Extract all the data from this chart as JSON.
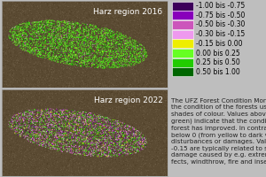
{
  "title_top": "Harz region 2016",
  "title_bottom": "Harz region 2022",
  "legend_labels": [
    "-1.00 bis -0.75",
    "-0.75 bis -0.50",
    "-0.50 bis -0.30",
    "-0.30 bis -0.15",
    "-0.15 bis 0.00",
    "0.00 bis 0.25",
    "0.25 bis 0.50",
    "0.50 bis 1.00"
  ],
  "legend_colors": [
    "#3d005a",
    "#8800bb",
    "#cc55bb",
    "#ee99ee",
    "#eeee00",
    "#66ff22",
    "#22cc00",
    "#006600"
  ],
  "bg_color": "#bebebe",
  "map_bg": "#5a4a32",
  "panel_bg": "#8a7a62",
  "description": "The UFZ Forest Condition Monitor visualises\nthe condition of the forests using different\nshades of colour. Values above 0 (shades of\ngreen) indicate that the condition of the\nforest has improved. In contrast, values\nbelow 0 (from yellow to dark violet) indicate\ndisturbances or damages. Values less than\n-0.15 are typically related to severe forest\ndamage caused by e.g. extreme drought ef-\nfects, windthrow, fire and insect infestations.",
  "desc_fontsize": 5.2,
  "title_fontsize": 6.5,
  "label_fontsize": 5.5,
  "panel_border": "#aaaaaa"
}
